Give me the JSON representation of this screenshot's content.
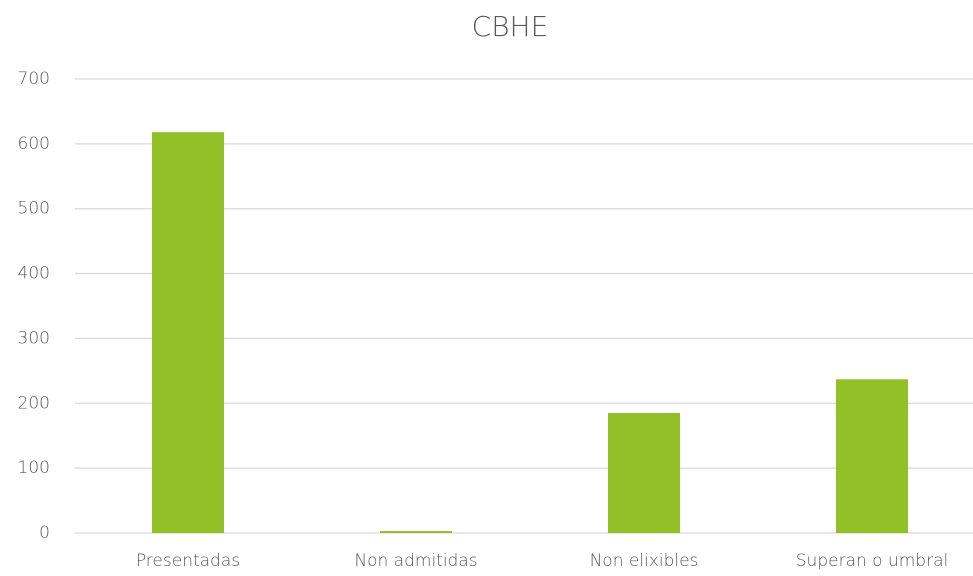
{
  "chart_data": {
    "type": "bar",
    "title": "CBHE",
    "categories": [
      "Presentadas",
      "Non admitidas",
      "Non elixibles",
      "Superan o umbral"
    ],
    "values": [
      618,
      3,
      185,
      237
    ],
    "color": "#92c026",
    "ylim": [
      0,
      700
    ],
    "yticks": [
      0,
      100,
      200,
      300,
      400,
      500,
      600,
      700
    ],
    "grid": true
  }
}
